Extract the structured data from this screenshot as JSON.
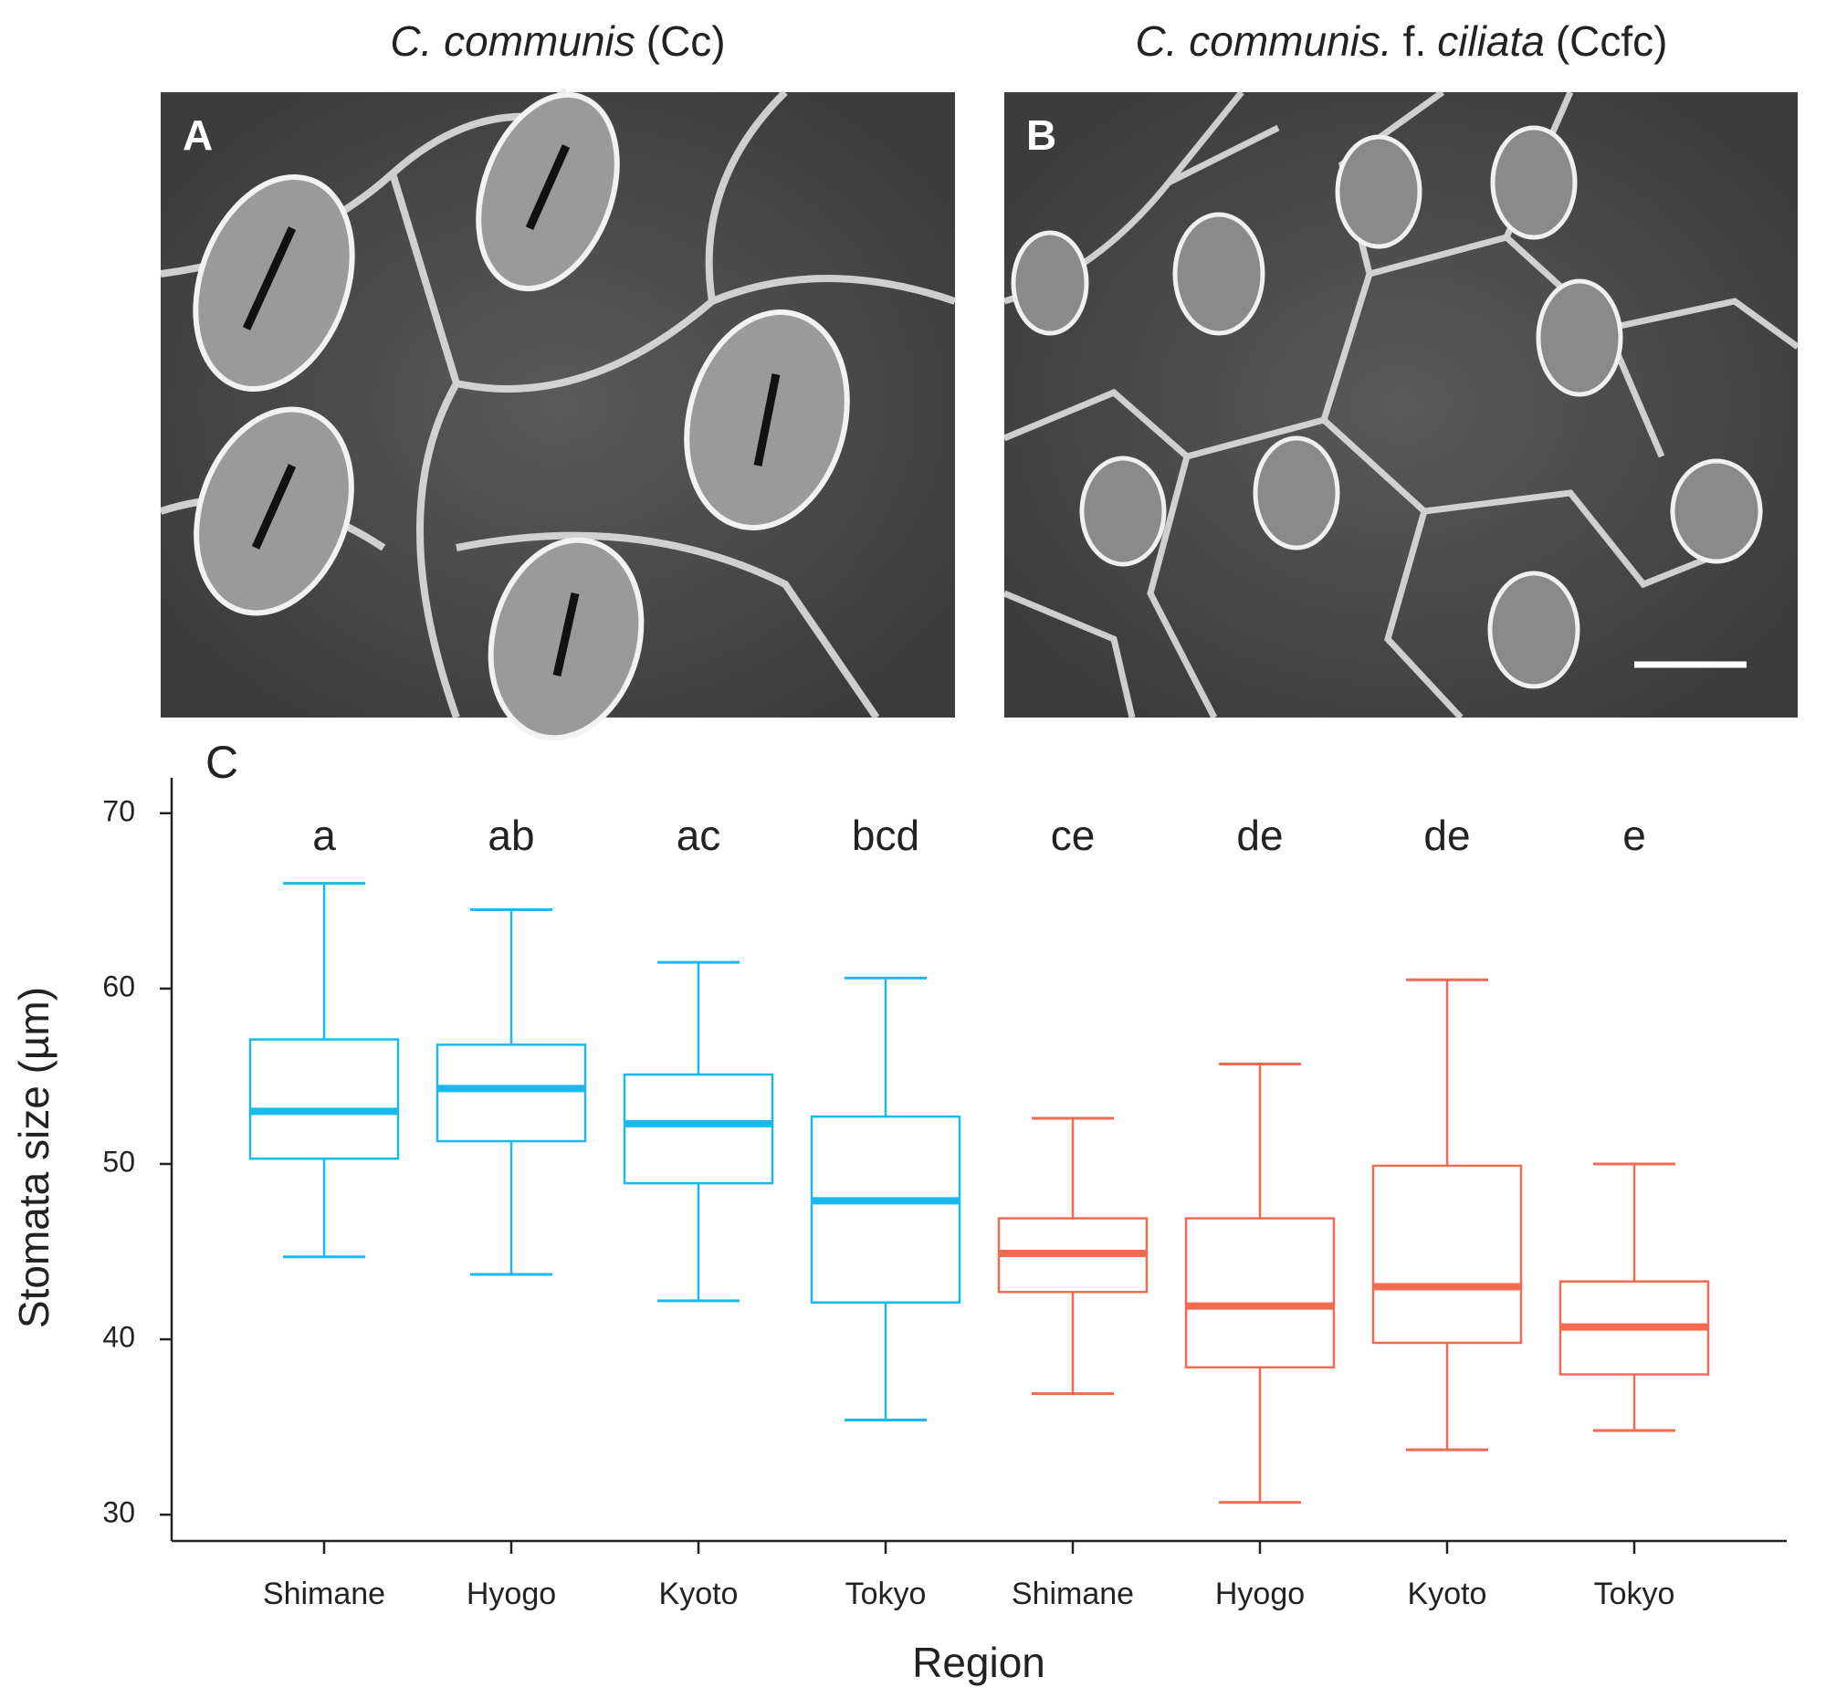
{
  "panels": [
    {
      "label": "A",
      "title": [
        {
          "text": "C. communis",
          "italic": true
        },
        {
          "text": "(Cc)",
          "italic": false
        }
      ]
    },
    {
      "label": "B",
      "title": [
        {
          "text": "C. communis.",
          "italic": true
        },
        {
          "text": "f.",
          "italic": false
        },
        {
          "text": "ciliata",
          "italic": true
        },
        {
          "text": "(Ccfc)",
          "italic": false
        }
      ]
    }
  ],
  "chart_data": {
    "type": "box",
    "panel_label": "C",
    "x_label": "Region",
    "y_label": "Stomata size (µm)",
    "categories": [
      "Shimane",
      "Hyogo",
      "Kyoto",
      "Tokyo",
      "Shimane",
      "Hyogo",
      "Kyoto",
      "Tokyo"
    ],
    "colors": [
      "#1ab8ec",
      "#1ab8ec",
      "#1ab8ec",
      "#1ab8ec",
      "#f26a50",
      "#f26a50",
      "#f26a50",
      "#f26a50"
    ],
    "whisker_low": [
      44.7,
      43.7,
      42.2,
      35.4,
      36.9,
      30.7,
      33.7,
      34.8
    ],
    "q1": [
      50.3,
      51.3,
      48.9,
      42.1,
      42.7,
      38.4,
      39.8,
      38.0
    ],
    "median": [
      53.0,
      54.3,
      52.3,
      47.9,
      44.9,
      41.9,
      43.0,
      40.7
    ],
    "q3": [
      57.1,
      56.8,
      55.1,
      52.7,
      46.9,
      46.9,
      49.9,
      43.3
    ],
    "whisker_high": [
      66.0,
      64.5,
      61.5,
      60.6,
      52.6,
      55.7,
      60.5,
      50.0
    ],
    "group_letters": [
      "a",
      "ab",
      "ac",
      "bcd",
      "ce",
      "de",
      "de",
      "e"
    ],
    "ylim": [
      28.5,
      71.5
    ],
    "yticks": [
      30,
      40,
      50,
      60,
      70
    ]
  }
}
